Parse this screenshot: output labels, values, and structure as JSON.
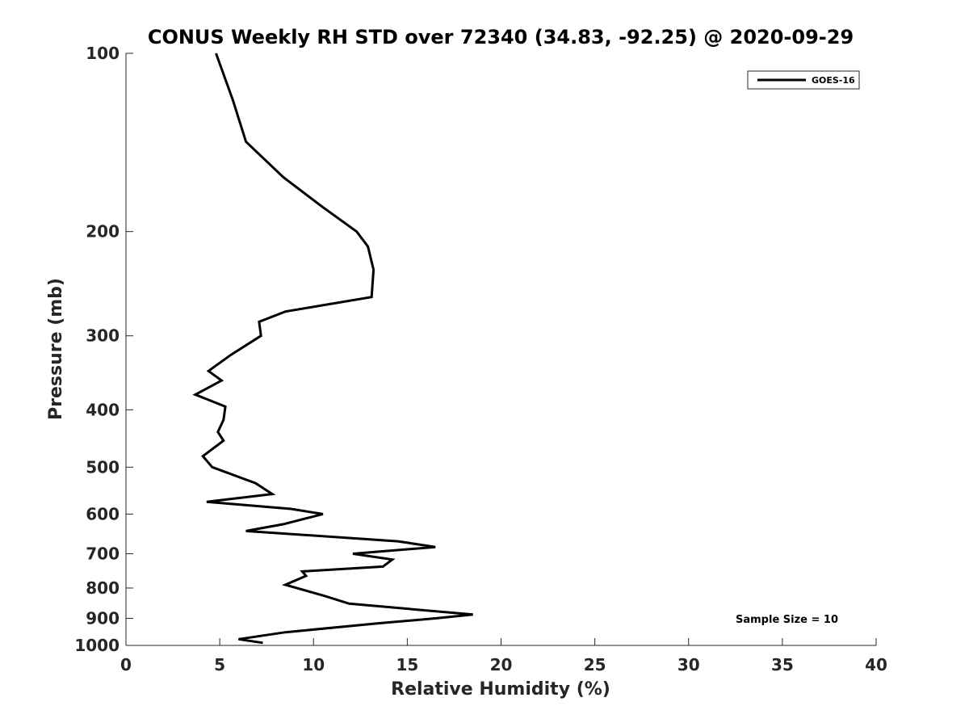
{
  "chart_data": {
    "type": "line",
    "title": "CONUS Weekly RH STD over 72340 (34.83, -92.25) @ 2020-09-29",
    "xlabel": "Relative Humidity (%)",
    "ylabel": "Pressure (mb)",
    "xlim": [
      0,
      40
    ],
    "ylim": [
      100,
      1000
    ],
    "y_scale": "log",
    "y_inverted": true,
    "xticks": [
      "0",
      "5",
      "10",
      "15",
      "20",
      "25",
      "30",
      "35",
      "40"
    ],
    "yticks": [
      "100",
      "200",
      "300",
      "400",
      "500",
      "600",
      "700",
      "800",
      "900",
      "1000"
    ],
    "grid": false,
    "legend_position": "top-right",
    "annotation": "Sample Size = 10",
    "colors": {
      "series_line": "#000000",
      "axis": "#262626"
    },
    "series": [
      {
        "name": "GOES-16",
        "points": [
          [
            4.8,
            100
          ],
          [
            5.7,
            120
          ],
          [
            6.4,
            141
          ],
          [
            8.4,
            162
          ],
          [
            10.5,
            182
          ],
          [
            12.3,
            200
          ],
          [
            12.9,
            212
          ],
          [
            13.2,
            232
          ],
          [
            13.1,
            258
          ],
          [
            8.5,
            273
          ],
          [
            7.1,
            284
          ],
          [
            7.2,
            300
          ],
          [
            5.6,
            323
          ],
          [
            4.4,
            344
          ],
          [
            5.1,
            357
          ],
          [
            3.7,
            377
          ],
          [
            5.3,
            395
          ],
          [
            5.2,
            416
          ],
          [
            4.9,
            436
          ],
          [
            5.2,
            451
          ],
          [
            4.1,
            479
          ],
          [
            4.6,
            500
          ],
          [
            6.9,
            532
          ],
          [
            7.8,
            555
          ],
          [
            4.3,
            572
          ],
          [
            8.8,
            588
          ],
          [
            10.5,
            600
          ],
          [
            8.4,
            624
          ],
          [
            6.4,
            641
          ],
          [
            14.5,
            667
          ],
          [
            16.5,
            682
          ],
          [
            12.1,
            700
          ],
          [
            14.2,
            716
          ],
          [
            13.7,
            736
          ],
          [
            9.4,
            750
          ],
          [
            9.6,
            763
          ],
          [
            8.5,
            790
          ],
          [
            10.6,
            825
          ],
          [
            11.9,
            850
          ],
          [
            18.5,
            887
          ],
          [
            16.5,
            900
          ],
          [
            13.4,
            918
          ],
          [
            8.5,
            950
          ],
          [
            6.0,
            976
          ],
          [
            7.3,
            990
          ]
        ]
      }
    ]
  }
}
